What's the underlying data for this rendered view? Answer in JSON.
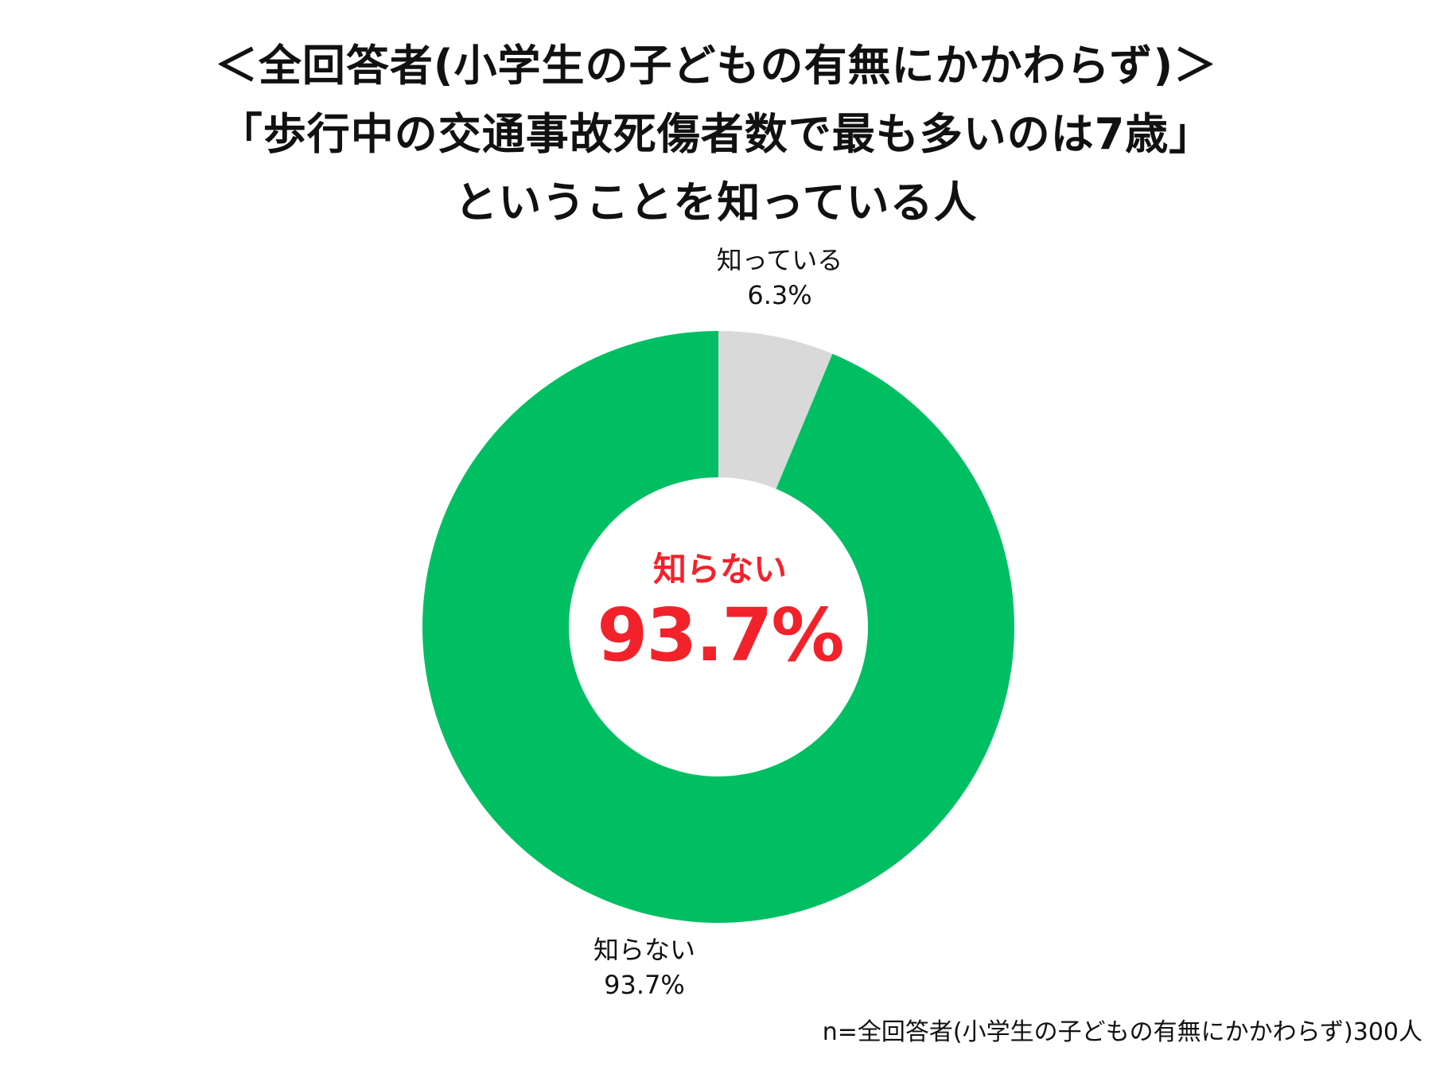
{
  "title": {
    "line1": "＜全回答者(小学生の子どもの有無にかかわらず)＞",
    "line2": "「歩行中の交通事故死傷者数で最も多いのは7歳」",
    "line3": "ということを知っている人"
  },
  "chart_data": {
    "type": "pie",
    "donut": true,
    "labels": [
      "知っている",
      "知らない"
    ],
    "values": [
      6.3,
      93.7
    ],
    "value_labels": [
      "6.3%",
      "93.7%"
    ],
    "colors": [
      "#d9d9d9",
      "#00bf63"
    ],
    "start": "12 o'clock, clockwise"
  },
  "center": {
    "label": "知らない",
    "value": "93.7%",
    "color": "#f2222b"
  },
  "footnote": "n=全回答者(小学生の子どもの有無にかかわらず)300人"
}
